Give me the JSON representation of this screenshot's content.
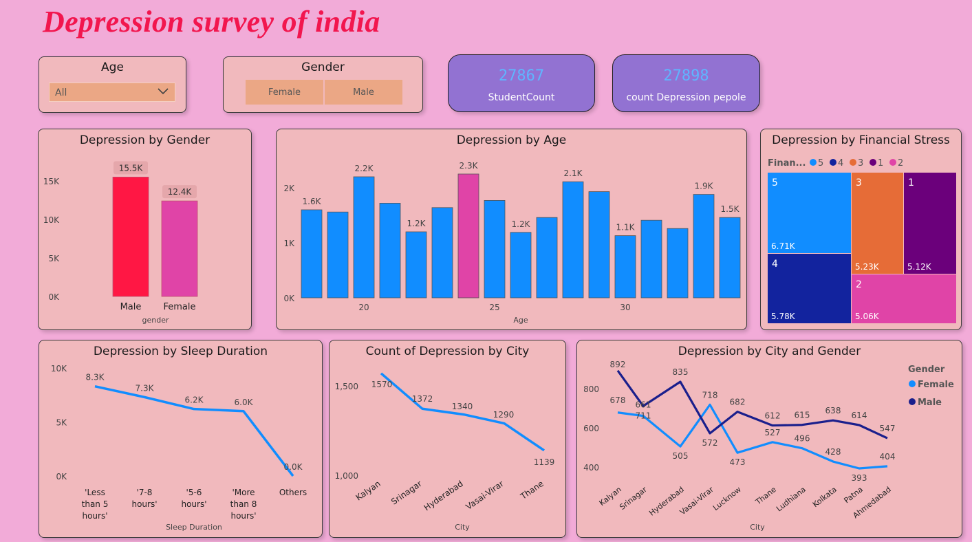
{
  "title": "Depression survey of india",
  "slicers": {
    "age": {
      "title": "Age",
      "value": "All"
    },
    "gender": {
      "title": "Gender",
      "options": [
        "Female",
        "Male"
      ]
    }
  },
  "kpis": [
    {
      "value": "27867",
      "label": "StudentCount"
    },
    {
      "value": "27898",
      "label": "count Depression pepole"
    }
  ],
  "colors": {
    "background": "#f2abd8",
    "card": "#f1b9bd",
    "blue": "#118dff",
    "pink": "#e044a7",
    "red": "#ff1744",
    "navy": "#1a1f8c",
    "kpi": "#9272d2"
  },
  "chart_data": [
    {
      "type": "bar",
      "title": "Depression by Gender",
      "xlabel": "gender",
      "categories": [
        "Male",
        "Female"
      ],
      "values": [
        15500,
        12400
      ],
      "data_labels": [
        "15.5K",
        "12.4K"
      ],
      "ylim": [
        0,
        15000
      ],
      "yticks": [
        "0K",
        "5K",
        "10K",
        "15K"
      ],
      "colors": [
        "#ff1744",
        "#e044a7"
      ]
    },
    {
      "type": "bar",
      "title": "Depression by Age",
      "xlabel": "Age",
      "ages": [
        18,
        19,
        20,
        21,
        22,
        23,
        24,
        25,
        26,
        27,
        28,
        29,
        30,
        31,
        32,
        33,
        34
      ],
      "values": [
        1600,
        1560,
        2200,
        1720,
        1200,
        1640,
        2250,
        1770,
        1190,
        1460,
        2110,
        1930,
        1130,
        1410,
        1260,
        1880,
        1460
      ],
      "data_labels": [
        "1.6K",
        "",
        "2.2K",
        "",
        "1.2K",
        "",
        "2.3K",
        "",
        "1.2K",
        "",
        "2.1K",
        "",
        "1.1K",
        "",
        "",
        "1.9K",
        "1.5K"
      ],
      "highlight_index": 6,
      "xticks": [
        "20",
        "25",
        "30"
      ],
      "yticks": [
        "0K",
        "1K",
        "2K"
      ],
      "ylim": [
        0,
        2500
      ]
    },
    {
      "type": "treemap",
      "title": "Depression by Financial Stress",
      "legend_title": "Finan...",
      "legend": [
        "5",
        "4",
        "3",
        "1",
        "2"
      ],
      "items": [
        {
          "label": "5",
          "value": "6.71K",
          "color": "#118dff"
        },
        {
          "label": "4",
          "value": "5.78K",
          "color": "#12239e"
        },
        {
          "label": "3",
          "value": "5.23K",
          "color": "#e66c37"
        },
        {
          "label": "1",
          "value": "5.12K",
          "color": "#6b007b"
        },
        {
          "label": "2",
          "value": "5.06K",
          "color": "#e044a7"
        }
      ]
    },
    {
      "type": "line",
      "title": "Depression by Sleep Duration",
      "xlabel": "Sleep Duration",
      "categories": [
        "'Less than 5 hours'",
        "'7-8 hours'",
        "'5-6 hours'",
        "'More than 8 hours'",
        "Others"
      ],
      "category_lines": [
        [
          "'Less",
          "than 5",
          "hours'"
        ],
        [
          "'7-8",
          "hours'"
        ],
        [
          "'5-6",
          "hours'"
        ],
        [
          "'More",
          "than 8",
          "hours'"
        ],
        [
          "Others"
        ]
      ],
      "values": [
        8300,
        7300,
        6200,
        6000,
        0
      ],
      "data_labels": [
        "8.3K",
        "7.3K",
        "6.2K",
        "6.0K",
        "0.0K"
      ],
      "yticks": [
        "0K",
        "5K",
        "10K"
      ],
      "ylim": [
        0,
        10000
      ]
    },
    {
      "type": "line",
      "title": "Count of Depression by City",
      "xlabel": "City",
      "categories": [
        "Kalyan",
        "Srinagar",
        "Hyderabad",
        "Vasai-Virar",
        "Thane"
      ],
      "values": [
        1570,
        1372,
        1340,
        1290,
        1139
      ],
      "yticks": [
        "1,000",
        "1,500"
      ],
      "ylim": [
        1000,
        1500
      ]
    },
    {
      "type": "line",
      "title": "Depression by City and Gender",
      "xlabel": "City",
      "legend_title": "Gender",
      "categories": [
        "Kalyan",
        "Srinagar",
        "Hyderabad",
        "Vasai-Virar",
        "Lucknow",
        "Thane",
        "Ludhiana",
        "Kolkata",
        "Patna",
        "Ahmedabad"
      ],
      "series": [
        {
          "name": "Female",
          "values": [
            678,
            661,
            505,
            718,
            473,
            527,
            496,
            428,
            393,
            404
          ]
        },
        {
          "name": "Male",
          "values": [
            892,
            711,
            835,
            572,
            682,
            612,
            615,
            638,
            614,
            547
          ]
        }
      ],
      "yticks": [
        "400",
        "600",
        "800"
      ],
      "ylim": [
        400,
        800
      ]
    }
  ]
}
